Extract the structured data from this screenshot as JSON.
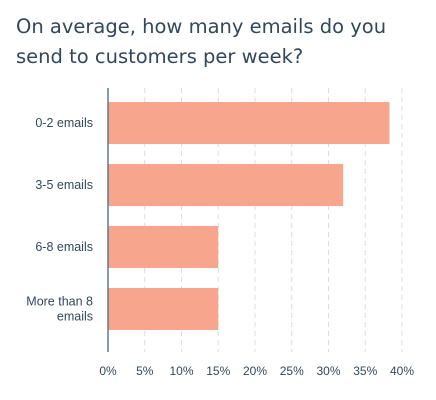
{
  "chart_data": {
    "type": "bar",
    "orientation": "horizontal",
    "title": "On average, how many emails do you send to customers per week?",
    "categories": [
      "0-2 emails",
      "3-5 emails",
      "6-8 emails",
      "More than 8 emails"
    ],
    "category_lines": [
      [
        "0-2 emails"
      ],
      [
        "3-5 emails"
      ],
      [
        "6-8 emails"
      ],
      [
        "More than 8",
        "emails"
      ]
    ],
    "values": [
      38.3,
      32,
      15,
      15
    ],
    "value_unit": "%",
    "xlim": [
      0,
      40
    ],
    "x_ticks": [
      "0%",
      "5%",
      "10%",
      "15%",
      "20%",
      "25%",
      "30%",
      "35%",
      "40%"
    ],
    "xlabel": "",
    "ylabel": "",
    "grid": "vertical dashed",
    "legend": "none",
    "colors": {
      "bar": "#f8a58e",
      "axis": "#5d7892",
      "grid": "#d7dee6",
      "text": "#33475b"
    }
  }
}
